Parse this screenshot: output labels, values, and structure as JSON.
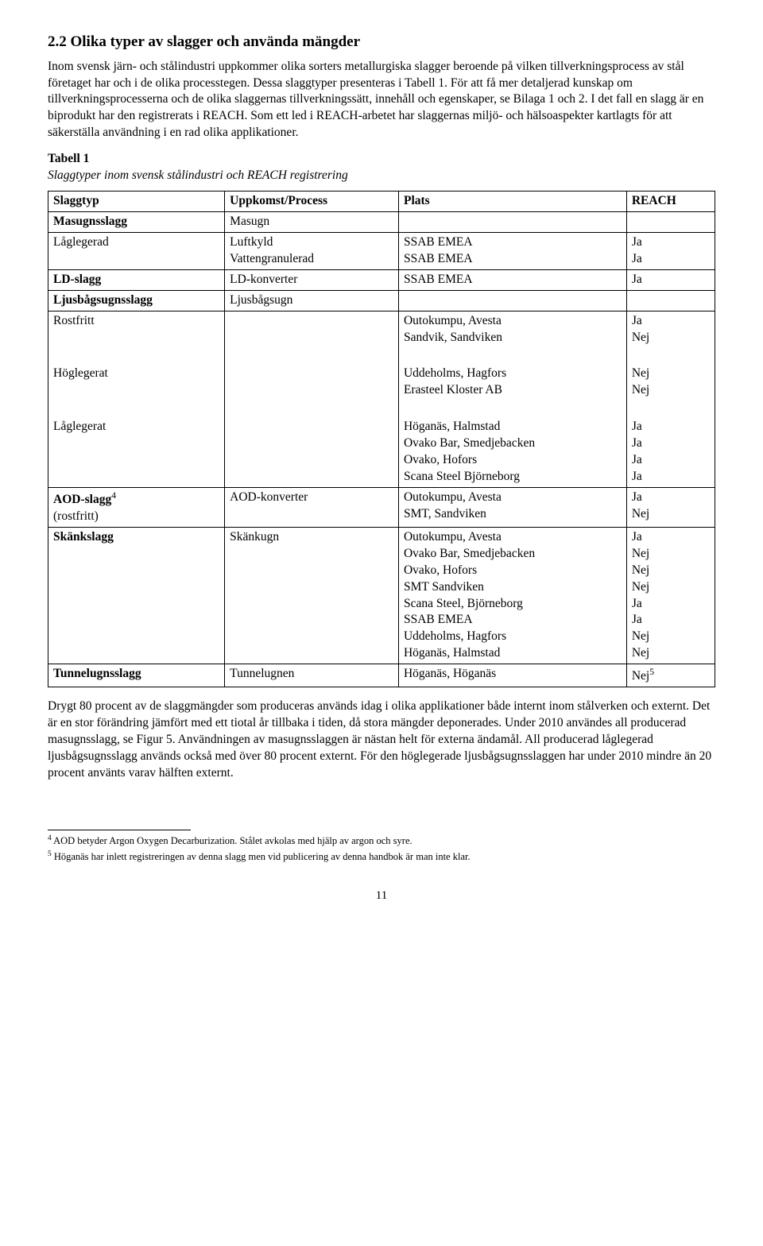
{
  "heading": "2.2 Olika typer av slagger och använda mängder",
  "para1": "Inom svensk järn- och stålindustri uppkommer olika sorters metallurgiska slagger beroende på vilken tillverkningsprocess av stål företaget har och i de olika processtegen. Dessa slaggtyper presenteras i Tabell 1. För att få mer detaljerad kunskap om tillverkningsprocesserna och de olika slaggernas tillverkningssätt, innehåll och egenskaper, se Bilaga 1 och 2. I det fall en slagg är en biprodukt har den registrerats i REACH. Som ett led i REACH-arbetet har slaggernas miljö- och hälsoaspekter kartlagts för att säkerställa användning i en rad olika applikationer.",
  "table_caption_title": "Tabell 1",
  "table_caption_sub": "Slaggtyper inom svensk stålindustri och REACH registrering",
  "th": {
    "c1": "Slaggtyp",
    "c2": "Uppkomst/Process",
    "c3": "Plats",
    "c4": "REACH"
  },
  "rows": {
    "r1": {
      "c1": "Masugnsslagg",
      "c2": "Masugn",
      "c3": "",
      "c4": ""
    },
    "r2": {
      "c1": "Låglegerad",
      "c2a": "Luftkyld",
      "c2b": "Vattengranulerad",
      "c3a": "SSAB EMEA",
      "c3b": "SSAB EMEA",
      "c4a": "Ja",
      "c4b": "Ja"
    },
    "r3": {
      "c1": "LD-slagg",
      "c2": "LD-konverter",
      "c3": "SSAB EMEA",
      "c4": "Ja"
    },
    "r4": {
      "c1": "Ljusbågsugnsslagg",
      "c2": "Ljusbågsugn",
      "c3": "",
      "c4": ""
    },
    "r5": {
      "c1": "Rostfritt",
      "c2": "",
      "c3a": "Outokumpu, Avesta",
      "c3b": "Sandvik, Sandviken",
      "c4a": "Ja",
      "c4b": "Nej"
    },
    "r6": {
      "c1": "Höglegerat",
      "c2": "",
      "c3a": "Uddeholms, Hagfors",
      "c3b": "Erasteel Kloster AB",
      "c4a": "Nej",
      "c4b": "Nej"
    },
    "r7": {
      "c1": "Låglegerat",
      "c2": "",
      "c3a": "Höganäs, Halmstad",
      "c3b": "Ovako Bar, Smedjebacken",
      "c3c": "Ovako, Hofors",
      "c3d": "Scana Steel Björneborg",
      "c4a": "Ja",
      "c4b": "Ja",
      "c4c": "Ja",
      "c4d": "Ja"
    },
    "r8": {
      "c1a": "AOD-slagg",
      "c1b": "(rostfritt)",
      "sup": "4",
      "c2": "AOD-konverter",
      "c3a": "Outokumpu, Avesta",
      "c3b": "SMT, Sandviken",
      "c4a": "Ja",
      "c4b": "Nej"
    },
    "r9": {
      "c1": "Skänkslagg",
      "c2": "Skänkugn",
      "c3a": "Outokumpu, Avesta",
      "c3b": "Ovako Bar, Smedjebacken",
      "c3c": "Ovako, Hofors",
      "c3d": "SMT Sandviken",
      "c3e": "Scana Steel, Björneborg",
      "c3f": "SSAB EMEA",
      "c3g": "Uddeholms, Hagfors",
      "c3h": "Höganäs, Halmstad",
      "c4a": "Ja",
      "c4b": "Nej",
      "c4c": "Nej",
      "c4d": "Nej",
      "c4e": "Ja",
      "c4f": "Ja",
      "c4g": "Nej",
      "c4h": "Nej"
    },
    "r10": {
      "c1": "Tunnelugnsslagg",
      "c2": "Tunnelugnen",
      "c3": "Höganäs, Höganäs",
      "c4": "Nej",
      "sup": "5"
    }
  },
  "para2": "Drygt 80 procent av de slaggmängder som produceras används idag i olika applikationer både internt inom stålverken och externt. Det är en stor förändring jämfört med ett tiotal år tillbaka i tiden, då stora mängder deponerades. Under 2010 användes all producerad masugnsslagg, se Figur 5. Användningen av masugnsslaggen är nästan helt för externa ändamål. All producerad låglegerad ljusbågsugnsslagg används också med över 80 procent externt. För den höglegerade ljusbågsugnsslaggen har under 2010 mindre än 20 procent använts varav hälften externt.",
  "fn4_num": "4",
  "fn4": " AOD betyder Argon Oxygen Decarburization. Stålet avkolas med hjälp av argon och syre.",
  "fn5_num": "5",
  "fn5": " Höganäs har inlett registreringen av denna slagg men vid publicering av denna handbok är man inte klar.",
  "page_number": "11"
}
